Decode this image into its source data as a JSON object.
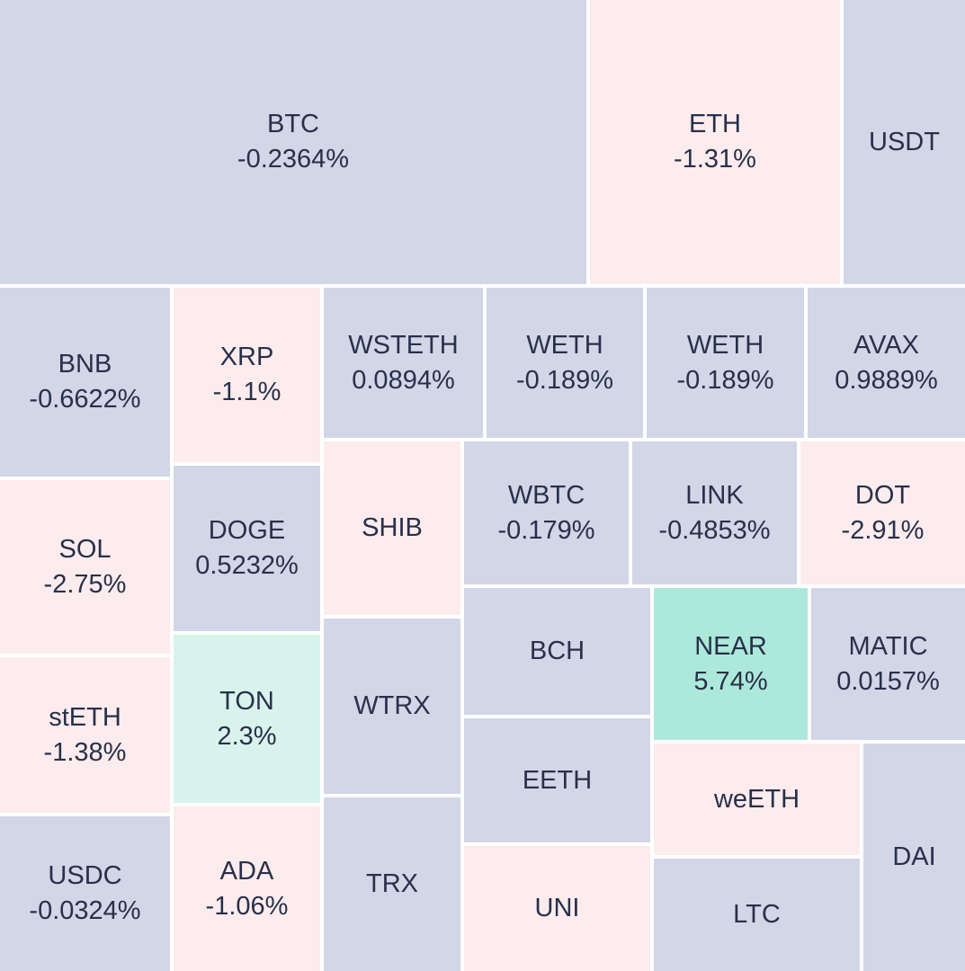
{
  "colors": {
    "neutral": "#d2d6e7",
    "negative": "#fdeced",
    "positive_light": "#d8f3ec",
    "positive_strong": "#ade9da",
    "text": "#28304a"
  },
  "tiles": [
    {
      "symbol": "BTC",
      "change": "-0.2364%",
      "color": "neutral"
    },
    {
      "symbol": "ETH",
      "change": "-1.31%",
      "color": "negative"
    },
    {
      "symbol": "USDT",
      "change": "",
      "color": "neutral"
    },
    {
      "symbol": "BNB",
      "change": "-0.6622%",
      "color": "neutral"
    },
    {
      "symbol": "XRP",
      "change": "-1.1%",
      "color": "negative"
    },
    {
      "symbol": "WSTETH",
      "change": "0.0894%",
      "color": "neutral"
    },
    {
      "symbol": "WETH",
      "change": "-0.189%",
      "color": "neutral"
    },
    {
      "symbol": "WETH",
      "change": "-0.189%",
      "color": "neutral"
    },
    {
      "symbol": "AVAX",
      "change": "0.9889%",
      "color": "neutral"
    },
    {
      "symbol": "SOL",
      "change": "-2.75%",
      "color": "negative"
    },
    {
      "symbol": "DOGE",
      "change": "0.5232%",
      "color": "neutral"
    },
    {
      "symbol": "SHIB",
      "change": "",
      "color": "negative"
    },
    {
      "symbol": "WBTC",
      "change": "-0.179%",
      "color": "neutral"
    },
    {
      "symbol": "LINK",
      "change": "-0.4853%",
      "color": "neutral"
    },
    {
      "symbol": "DOT",
      "change": "-2.91%",
      "color": "negative"
    },
    {
      "symbol": "stETH",
      "change": "-1.38%",
      "color": "negative"
    },
    {
      "symbol": "TON",
      "change": "2.3%",
      "color": "positive_light"
    },
    {
      "symbol": "WTRX",
      "change": "",
      "color": "neutral"
    },
    {
      "symbol": "BCH",
      "change": "",
      "color": "neutral"
    },
    {
      "symbol": "NEAR",
      "change": "5.74%",
      "color": "positive_strong"
    },
    {
      "symbol": "MATIC",
      "change": "0.0157%",
      "color": "neutral"
    },
    {
      "symbol": "EETH",
      "change": "",
      "color": "neutral"
    },
    {
      "symbol": "weETH",
      "change": "",
      "color": "negative"
    },
    {
      "symbol": "DAI",
      "change": "",
      "color": "neutral"
    },
    {
      "symbol": "USDC",
      "change": "-0.0324%",
      "color": "neutral"
    },
    {
      "symbol": "ADA",
      "change": "-1.06%",
      "color": "negative"
    },
    {
      "symbol": "TRX",
      "change": "",
      "color": "neutral"
    },
    {
      "symbol": "UNI",
      "change": "",
      "color": "negative"
    },
    {
      "symbol": "LTC",
      "change": "",
      "color": "neutral"
    }
  ]
}
